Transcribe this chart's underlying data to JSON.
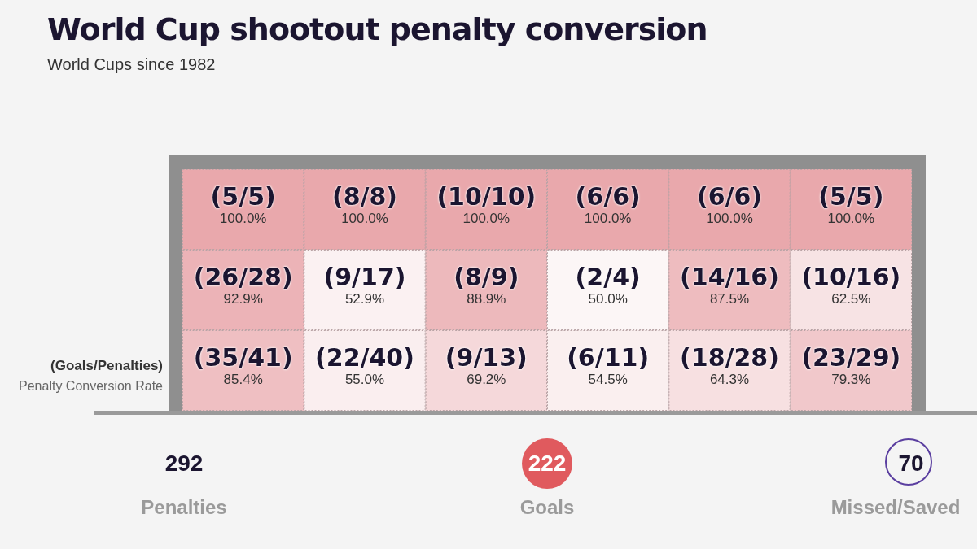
{
  "chart_data": {
    "type": "heatmap",
    "title": "World Cup shootout penalty conversion",
    "subtitle": "World Cups since 1982",
    "categories": [
      null,
      null,
      null,
      null,
      null,
      null
    ],
    "y_categories": [
      null,
      null,
      null
    ],
    "cells": [
      [
        100.0,
        100.0,
        100.0,
        100.0,
        100.0,
        100.0
      ],
      [
        92.9,
        52.9,
        88.9,
        50.0,
        87.5,
        62.5
      ],
      [
        85.4,
        55.0,
        69.2,
        54.5,
        64.3,
        79.3
      ]
    ],
    "cell_labels": [
      [
        "100.0%",
        "100.0%",
        "100.0%",
        "100.0%",
        "100.0%",
        "100.0%"
      ],
      [
        "92.9%",
        "52.9%",
        "88.9%",
        "50.0%",
        "87.5%",
        "62.5%"
      ],
      [
        "85.4%",
        "55.0%",
        "69.2%",
        "54.5%",
        "64.3%",
        "79.3%"
      ]
    ],
    "data_labels": true,
    "annotations": [
      "(Goals/Penalties)",
      "Penalty Conversion Rate",
      "292",
      "Penalties",
      "222",
      "Goals",
      "70",
      "Missed/Saved",
      "(5/5)",
      "(8/8)",
      "(10/10)",
      "(6/6)",
      "(6/6)",
      "(5/5)",
      "(26/28)",
      "(9/17)",
      "(8/9)",
      "(2/4)",
      "(14/16)",
      "(10/16)",
      "(35/41)",
      "(22/40)",
      "(9/13)",
      "(6/11)",
      "(18/28)",
      "(23/29)"
    ]
  }
}
